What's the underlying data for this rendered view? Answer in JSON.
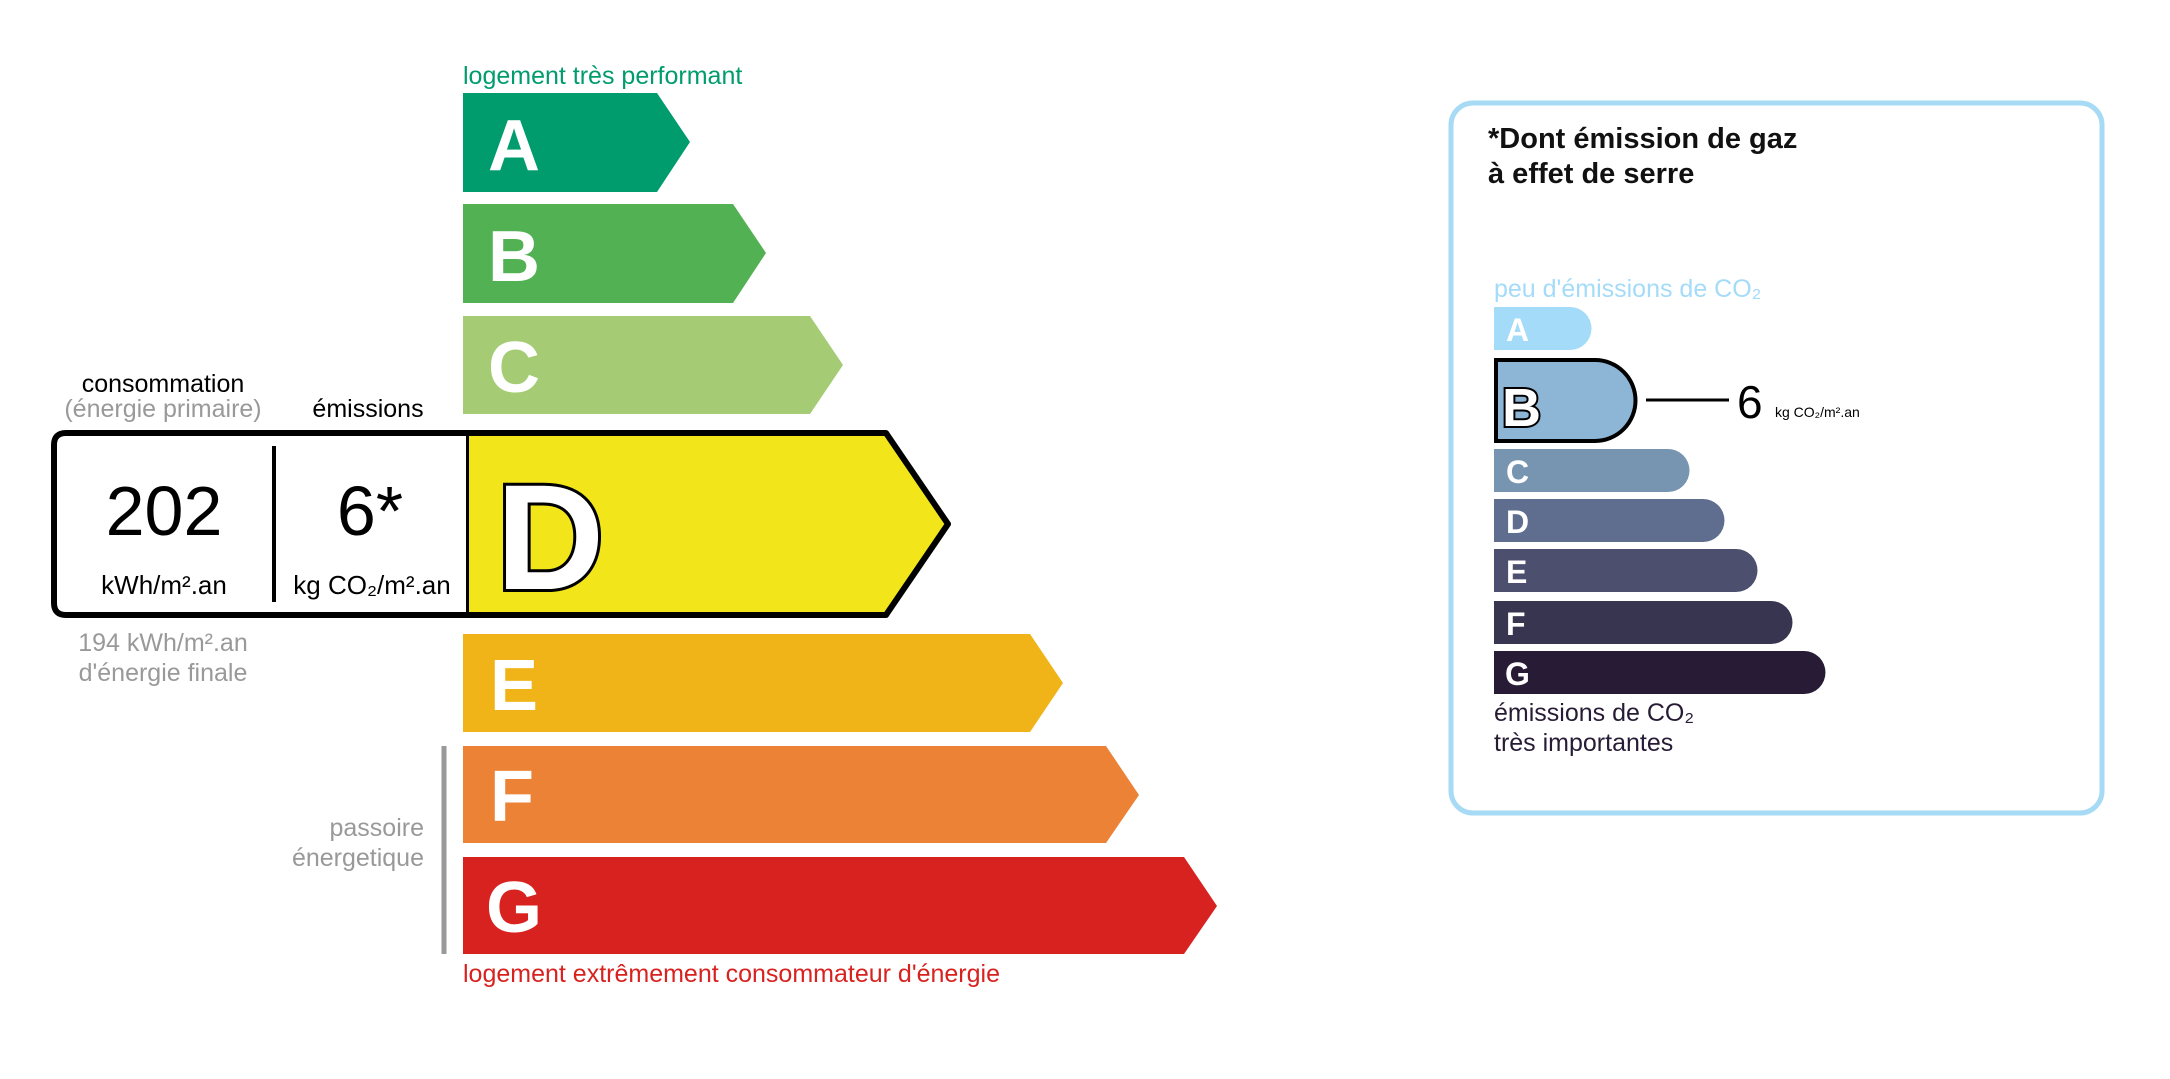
{
  "energy": {
    "top_label": "logement très performant",
    "bottom_label": "logement extrêmement consommateur d'énergie",
    "classes": [
      {
        "letter": "A",
        "color": "#009c6d"
      },
      {
        "letter": "B",
        "color": "#52b153"
      },
      {
        "letter": "C",
        "color": "#a5cc74"
      },
      {
        "letter": "D",
        "color": "#f2e61a"
      },
      {
        "letter": "E",
        "color": "#f0b418"
      },
      {
        "letter": "F",
        "color": "#eb8235"
      },
      {
        "letter": "G",
        "color": "#d7221f"
      }
    ],
    "current_class": "D",
    "consumption_label": "consommation",
    "consumption_sublabel": "(énergie primaire)",
    "emissions_label": "émissions",
    "consumption_value": "202",
    "consumption_unit": "kWh/m².an",
    "emissions_value": "6*",
    "emissions_unit": "kg CO₂/m².an",
    "final_energy_value": "194 kWh/m².an",
    "final_energy_label": "d'énergie finale",
    "passoire_line1": "passoire",
    "passoire_line2": "énergetique",
    "top_color": "#009c6d",
    "bottom_color": "#d7221f"
  },
  "ges": {
    "title_line1": "*Dont émission de gaz",
    "title_line2": "à effet de serre",
    "top_label": "peu d'émissions de CO₂",
    "bottom_line1": "émissions de CO₂",
    "bottom_line2": "très importantes",
    "classes": [
      {
        "letter": "A",
        "color": "#a4dbf8"
      },
      {
        "letter": "B",
        "color": "#8db5d5"
      },
      {
        "letter": "C",
        "color": "#7794b1"
      },
      {
        "letter": "D",
        "color": "#5f6e8e"
      },
      {
        "letter": "E",
        "color": "#4c4f6d"
      },
      {
        "letter": "F",
        "color": "#383550"
      },
      {
        "letter": "G",
        "color": "#281b35"
      }
    ],
    "current_class": "B",
    "value": "6",
    "unit": "kg CO₂/m².an",
    "border_color": "#a6daf5"
  }
}
